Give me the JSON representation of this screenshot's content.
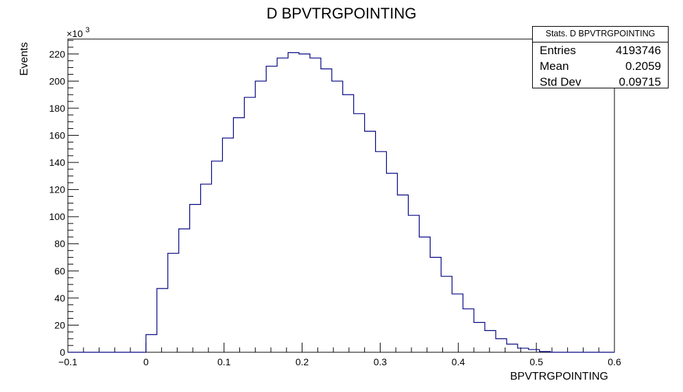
{
  "chart_data": {
    "type": "histogram",
    "title": "D BPVTRGPOINTING",
    "xlabel": "BPVTRGPOINTING",
    "ylabel": "Events",
    "y_multiplier": "×10",
    "y_multiplier_exp": "3",
    "xlim": [
      -0.1,
      0.6
    ],
    "ylim": [
      0,
      231
    ],
    "x_ticks": [
      "−0.1",
      "0",
      "0.1",
      "0.2",
      "0.3",
      "0.4",
      "0.5",
      "0.6"
    ],
    "y_ticks": [
      "0",
      "20",
      "40",
      "60",
      "80",
      "100",
      "120",
      "140",
      "160",
      "180",
      "200",
      "220"
    ],
    "grid": false,
    "line_color": "#000080",
    "bin_edges_start": 0.0,
    "bin_width": 0.014,
    "values": [
      13,
      47,
      73,
      91,
      109,
      124,
      141,
      158,
      173,
      188,
      200,
      211,
      217,
      221,
      220,
      217,
      209,
      200,
      190,
      176,
      163,
      148,
      132,
      116,
      101,
      85,
      70,
      56,
      43,
      32,
      22,
      16,
      10,
      6,
      3,
      2,
      0.5
    ]
  },
  "stats": {
    "title": "Stats. D BPVTRGPOINTING",
    "rows": [
      {
        "label": "Entries",
        "value": "4193746"
      },
      {
        "label": "Mean",
        "value": "0.2059"
      },
      {
        "label": "Std Dev",
        "value": "0.09715"
      }
    ]
  }
}
